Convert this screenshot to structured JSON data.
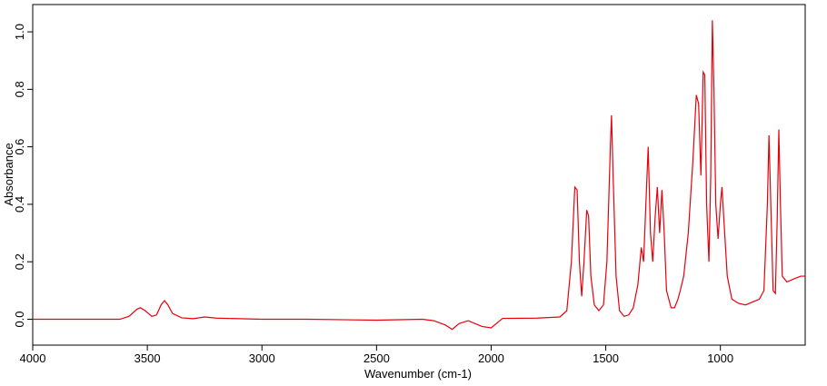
{
  "chart_data": {
    "type": "line",
    "xlabel": "Wavenumber (cm-1)",
    "ylabel": "Absorbance",
    "color": "#e8000b",
    "x": [
      4000,
      3620,
      3580,
      3545,
      3530,
      3510,
      3480,
      3460,
      3440,
      3425,
      3410,
      3390,
      3350,
      3300,
      3250,
      3200,
      3000,
      2800,
      2500,
      2300,
      2250,
      2200,
      2170,
      2140,
      2100,
      2070,
      2040,
      2000,
      1970,
      1950,
      1800,
      1700,
      1670,
      1650,
      1635,
      1625,
      1615,
      1605,
      1595,
      1583,
      1575,
      1565,
      1550,
      1530,
      1510,
      1495,
      1480,
      1475,
      1468,
      1455,
      1440,
      1420,
      1400,
      1380,
      1360,
      1345,
      1335,
      1325,
      1315,
      1305,
      1295,
      1285,
      1275,
      1265,
      1255,
      1245,
      1235,
      1215,
      1200,
      1185,
      1175,
      1160,
      1140,
      1120,
      1105,
      1095,
      1085,
      1075,
      1068,
      1060,
      1050,
      1042,
      1035,
      1028,
      1020,
      1010,
      1000,
      993,
      985,
      970,
      950,
      920,
      890,
      860,
      830,
      810,
      795,
      788,
      780,
      770,
      760,
      752,
      745,
      738,
      730,
      710,
      680,
      650,
      630
    ],
    "values": [
      0.0,
      0.0,
      0.01,
      0.035,
      0.04,
      0.03,
      0.01,
      0.015,
      0.05,
      0.065,
      0.05,
      0.02,
      0.005,
      0.002,
      0.008,
      0.004,
      0.0,
      0.0,
      -0.003,
      0.0,
      -0.005,
      -0.02,
      -0.035,
      -0.015,
      -0.005,
      -0.015,
      -0.025,
      -0.03,
      -0.01,
      0.003,
      0.004,
      0.008,
      0.03,
      0.2,
      0.46,
      0.45,
      0.2,
      0.08,
      0.2,
      0.38,
      0.36,
      0.15,
      0.05,
      0.03,
      0.05,
      0.2,
      0.6,
      0.71,
      0.5,
      0.15,
      0.03,
      0.01,
      0.015,
      0.04,
      0.12,
      0.25,
      0.2,
      0.4,
      0.6,
      0.3,
      0.2,
      0.35,
      0.46,
      0.3,
      0.45,
      0.3,
      0.1,
      0.04,
      0.04,
      0.07,
      0.1,
      0.15,
      0.3,
      0.55,
      0.78,
      0.75,
      0.5,
      0.86,
      0.85,
      0.4,
      0.2,
      0.5,
      1.04,
      0.8,
      0.4,
      0.28,
      0.4,
      0.46,
      0.35,
      0.15,
      0.07,
      0.055,
      0.05,
      0.06,
      0.07,
      0.1,
      0.4,
      0.64,
      0.4,
      0.1,
      0.09,
      0.35,
      0.66,
      0.4,
      0.15,
      0.13,
      0.14,
      0.15,
      0.15
    ],
    "xlim": [
      4000,
      630
    ],
    "ylim": [
      -0.09,
      1.095
    ],
    "xticks": [
      4000,
      3500,
      3000,
      2500,
      2000,
      1500,
      1000
    ],
    "yticks": [
      {
        "value": 0,
        "label": "0.0"
      },
      {
        "value": 0.2,
        "label": "0.2"
      },
      {
        "value": 0.4,
        "label": "0.4"
      },
      {
        "value": 0.6,
        "label": "0.6"
      },
      {
        "value": 0.8,
        "label": "0.8"
      },
      {
        "value": 1,
        "label": "1.0"
      }
    ]
  }
}
